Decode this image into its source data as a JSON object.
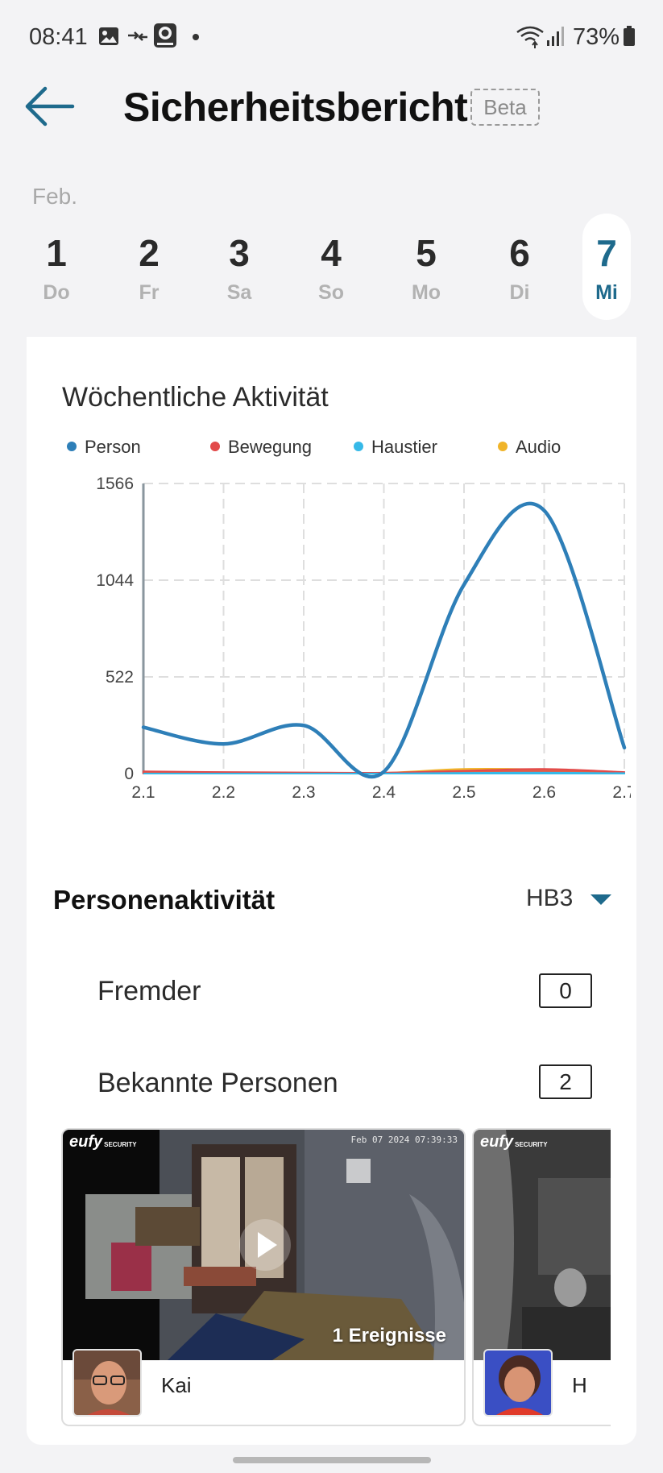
{
  "status_bar": {
    "time": "08:41",
    "battery_percent": "73%",
    "icons": [
      "gallery-icon",
      "transfer-icon",
      "eufy-app-icon",
      "dot-icon",
      "wifi-icon",
      "signal-icon",
      "battery-icon"
    ]
  },
  "header": {
    "title": "Sicherheitsbericht",
    "badge": "Beta",
    "back_icon": "arrow-left-icon"
  },
  "date_strip": {
    "month": "Feb.",
    "days": [
      {
        "num": "1",
        "weekday": "Do",
        "selected": false
      },
      {
        "num": "2",
        "weekday": "Fr",
        "selected": false
      },
      {
        "num": "3",
        "weekday": "Sa",
        "selected": false
      },
      {
        "num": "4",
        "weekday": "So",
        "selected": false
      },
      {
        "num": "5",
        "weekday": "Mo",
        "selected": false
      },
      {
        "num": "6",
        "weekday": "Di",
        "selected": false
      },
      {
        "num": "7",
        "weekday": "Mi",
        "selected": true
      }
    ],
    "selected_color": "#1e6a8c"
  },
  "chart_data": {
    "type": "line",
    "title": "Wöchentliche Aktivität",
    "categories": [
      "2.1",
      "2.2",
      "2.3",
      "2.4",
      "2.5",
      "2.6",
      "2.7"
    ],
    "y_ticks": [
      "1566",
      "1044",
      "522",
      "0"
    ],
    "ylim": [
      0,
      1566
    ],
    "grid": true,
    "legend_position": "top",
    "series": [
      {
        "name": "Person",
        "color": "#2e7fb8",
        "values": [
          250,
          160,
          260,
          10,
          1020,
          1420,
          140
        ]
      },
      {
        "name": "Bewegung",
        "color": "#e24a4a",
        "values": [
          12,
          8,
          6,
          5,
          15,
          25,
          8
        ]
      },
      {
        "name": "Haustier",
        "color": "#36b9e8",
        "values": [
          0,
          0,
          0,
          0,
          4,
          5,
          2
        ]
      },
      {
        "name": "Audio",
        "color": "#f0b429",
        "values": [
          4,
          3,
          3,
          4,
          25,
          22,
          6
        ]
      }
    ]
  },
  "person_activity": {
    "title": "Personenaktivität",
    "device": "HB3",
    "rows": [
      {
        "label": "Fremder",
        "count": "0"
      },
      {
        "label": "Bekannte Personen",
        "count": "2"
      }
    ],
    "cards": [
      {
        "brand": "eufy",
        "brand_sub": "SECURITY",
        "timestamp": "Feb 07 2024 07:39:33",
        "events": "1 Ereignisse",
        "name": "Kai"
      },
      {
        "brand": "eufy",
        "brand_sub": "SECURITY",
        "name": "H"
      }
    ]
  }
}
